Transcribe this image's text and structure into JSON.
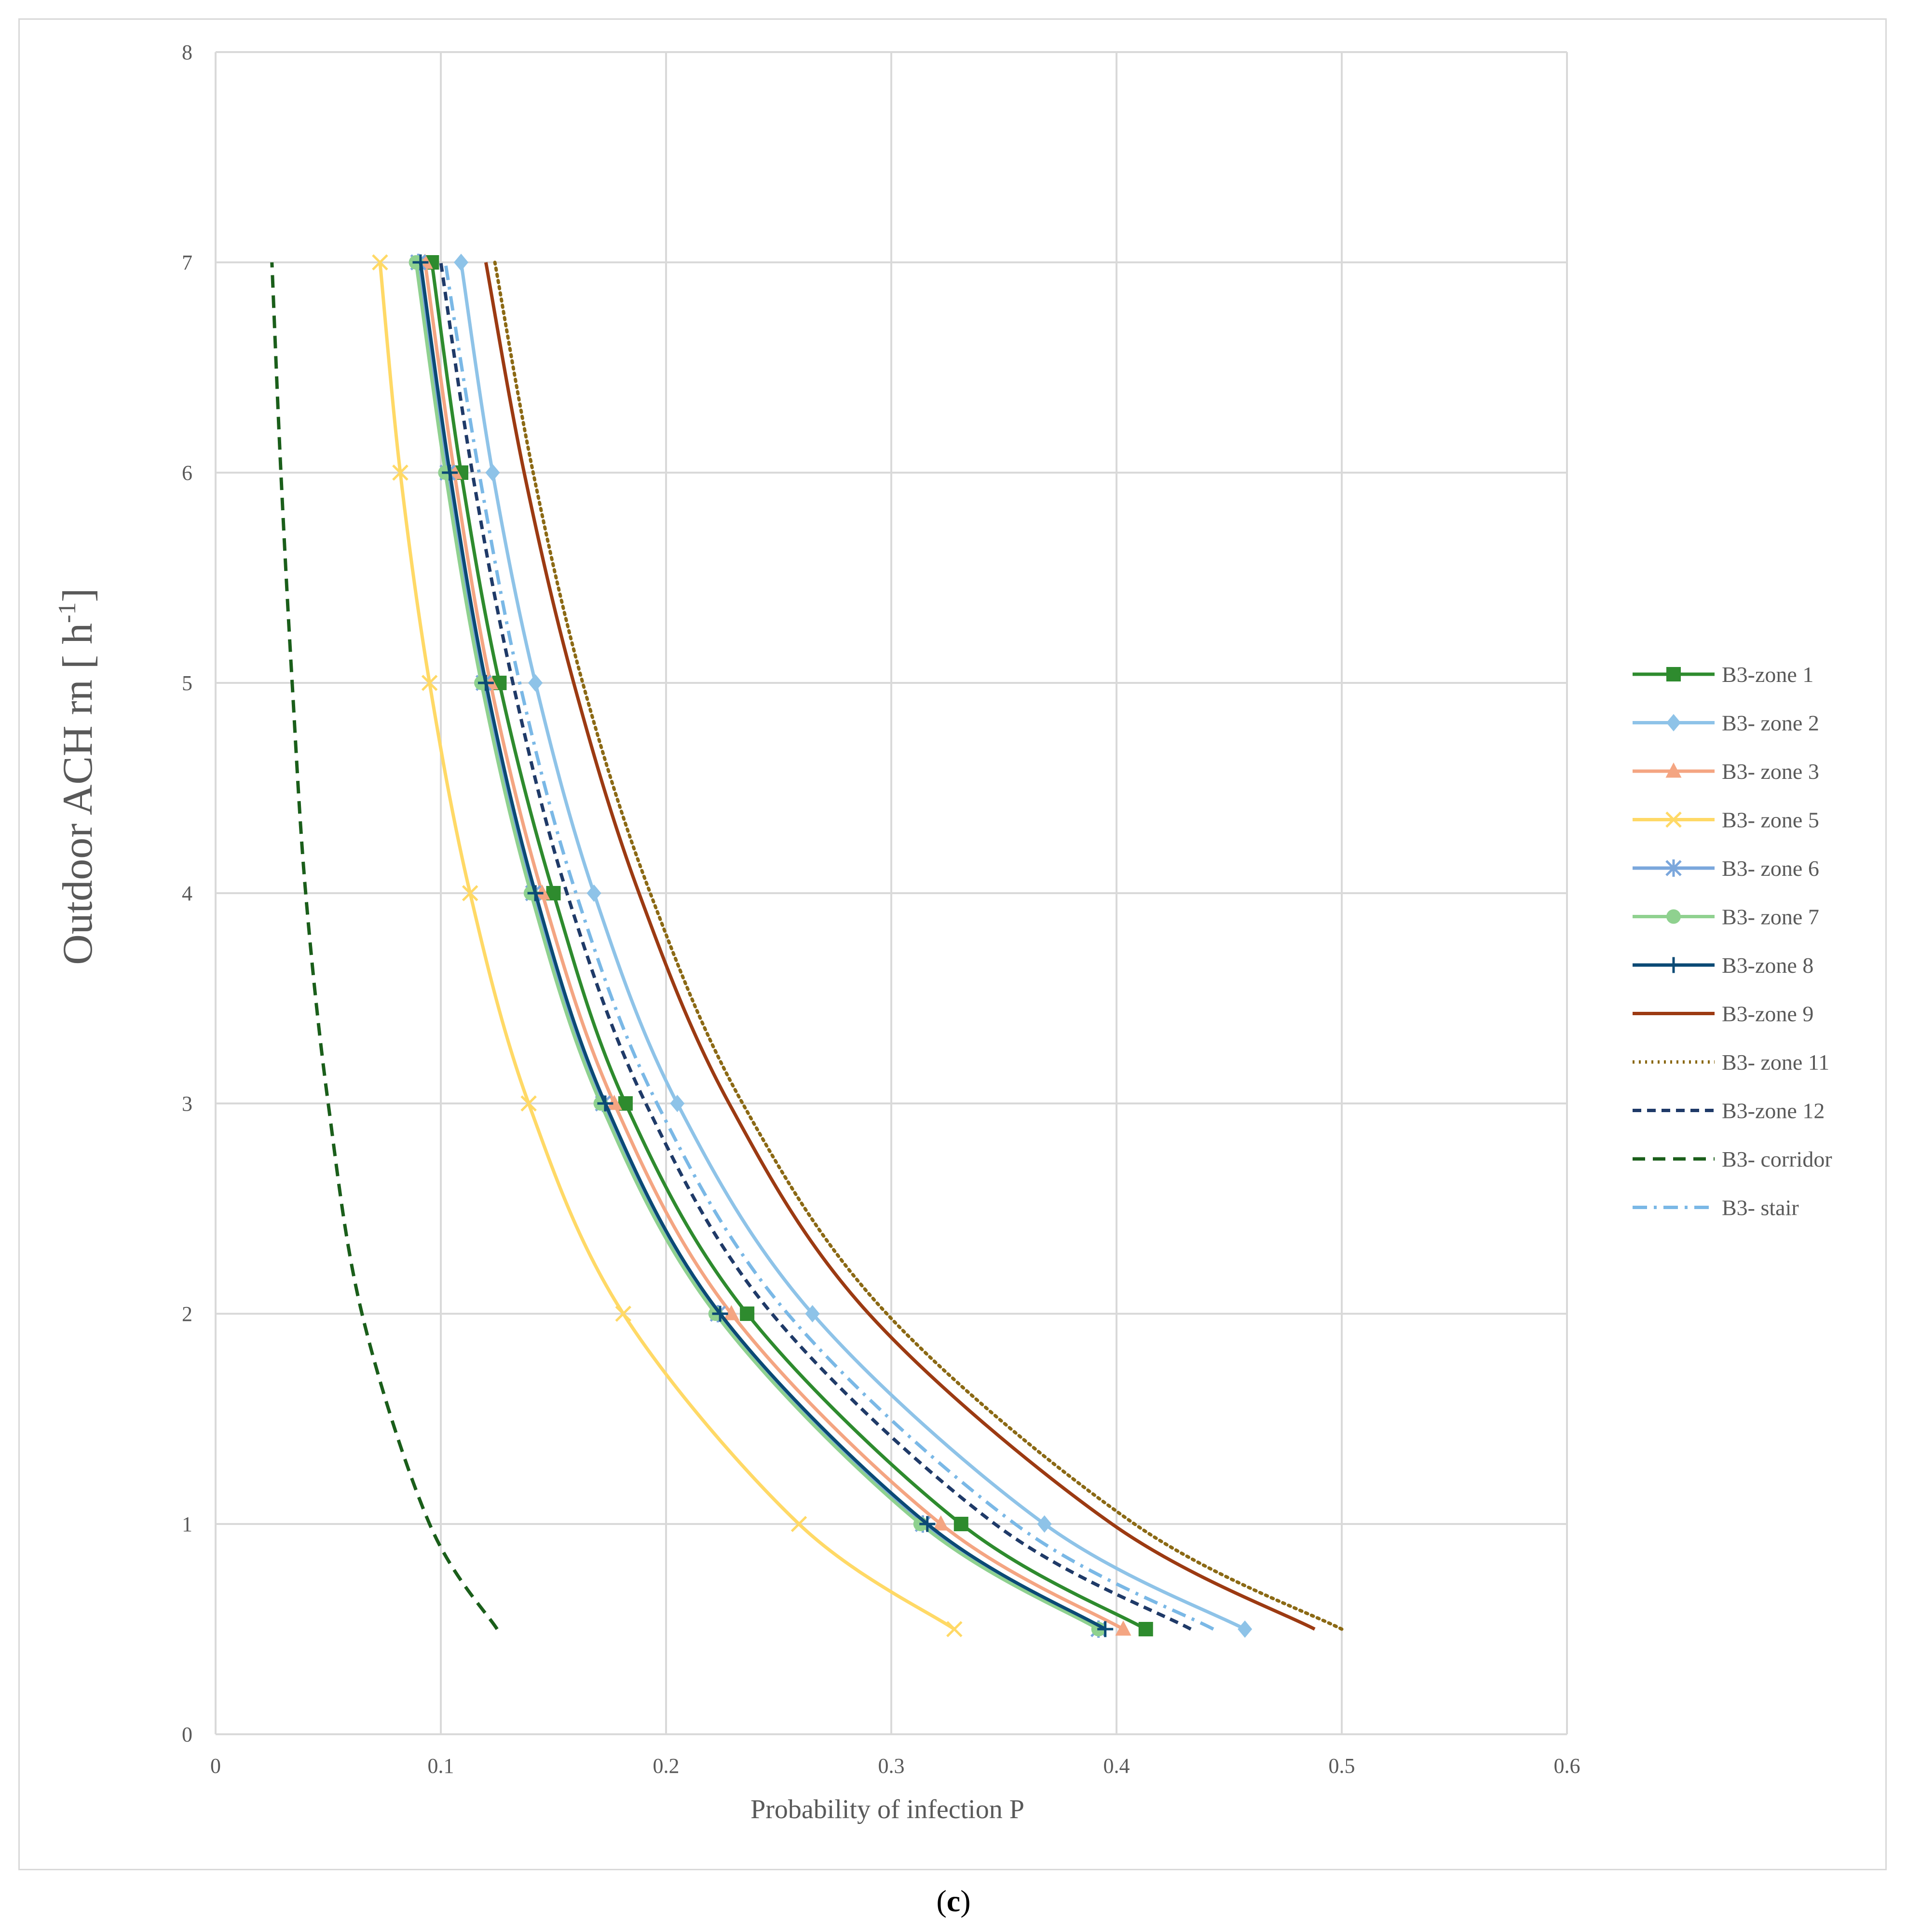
{
  "chart_data": {
    "type": "line",
    "title": "",
    "xlabel": "Probability of infection P",
    "ylabel": "Outdoor ACH rn [ h-1]",
    "ylabel_parts": {
      "main": "Outdoor ACH rn [ h",
      "sup": "-1",
      "end": "]"
    },
    "xlim": [
      0,
      0.6
    ],
    "ylim": [
      0,
      8
    ],
    "xticks": [
      "0",
      "0.1",
      "0.2",
      "0.3",
      "0.4",
      "0.5",
      "0.6"
    ],
    "yticks": [
      "0",
      "1",
      "2",
      "3",
      "4",
      "5",
      "6",
      "7",
      "8"
    ],
    "grid": true,
    "legend_position": "right",
    "y": [
      0.5,
      1,
      2,
      3,
      4,
      5,
      6,
      7
    ],
    "series": [
      {
        "name": "B3-zone 1",
        "color": "#2e8b2e",
        "dash": "solid",
        "marker": "square",
        "x": [
          0.413,
          0.331,
          0.236,
          0.182,
          0.15,
          0.126,
          0.109,
          0.096
        ]
      },
      {
        "name": "B3- zone 2",
        "color": "#8ec3e8",
        "dash": "solid",
        "marker": "diamond",
        "x": [
          0.457,
          0.368,
          0.265,
          0.205,
          0.168,
          0.142,
          0.123,
          0.109
        ]
      },
      {
        "name": "B3- zone 3",
        "color": "#f4a582",
        "dash": "solid",
        "marker": "triangle",
        "x": [
          0.403,
          0.322,
          0.229,
          0.177,
          0.145,
          0.122,
          0.106,
          0.093
        ]
      },
      {
        "name": "B3- zone 5",
        "color": "#ffd966",
        "dash": "solid",
        "marker": "x",
        "x": [
          0.328,
          0.259,
          0.181,
          0.139,
          0.113,
          0.095,
          0.082,
          0.073
        ]
      },
      {
        "name": "B3- zone 6",
        "color": "#7ba7dc",
        "dash": "solid",
        "marker": "star",
        "x": [
          0.392,
          0.314,
          0.223,
          0.172,
          0.141,
          0.119,
          0.103,
          0.09
        ]
      },
      {
        "name": "B3- zone 7",
        "color": "#8fd18f",
        "dash": "solid",
        "marker": "circle",
        "x": [
          0.392,
          0.313,
          0.222,
          0.171,
          0.14,
          0.118,
          0.102,
          0.089
        ]
      },
      {
        "name": "B3-zone 8",
        "color": "#0b4a75",
        "dash": "solid",
        "marker": "plus",
        "x": [
          0.395,
          0.316,
          0.224,
          0.173,
          0.142,
          0.12,
          0.104,
          0.091
        ]
      },
      {
        "name": "B3-zone 9",
        "color": "#9c3a12",
        "dash": "solid",
        "marker": "none",
        "x": [
          0.488,
          0.398,
          0.29,
          0.228,
          0.188,
          0.159,
          0.137,
          0.12
        ]
      },
      {
        "name": "B3- zone 11",
        "color": "#8b6914",
        "dash": "dot",
        "marker": "none",
        "x": [
          0.5,
          0.408,
          0.298,
          0.234,
          0.193,
          0.163,
          0.141,
          0.124
        ]
      },
      {
        "name": "B3-zone 12",
        "color": "#1f3a68",
        "dash": "dash",
        "marker": "none",
        "x": [
          0.433,
          0.346,
          0.247,
          0.191,
          0.156,
          0.132,
          0.114,
          0.1
        ]
      },
      {
        "name": "B3- corridor",
        "color": "#1a5e1a",
        "dash": "longdash",
        "marker": "none",
        "x": [
          0.125,
          0.095,
          0.065,
          0.05,
          0.04,
          0.034,
          0.029,
          0.025
        ]
      },
      {
        "name": "B3- stair",
        "color": "#7ab8e6",
        "dash": "dashdot",
        "marker": "none",
        "x": [
          0.443,
          0.355,
          0.254,
          0.196,
          0.16,
          0.135,
          0.117,
          0.102
        ]
      }
    ]
  },
  "caption": {
    "open": "(",
    "letter": "c",
    "close": ")"
  }
}
